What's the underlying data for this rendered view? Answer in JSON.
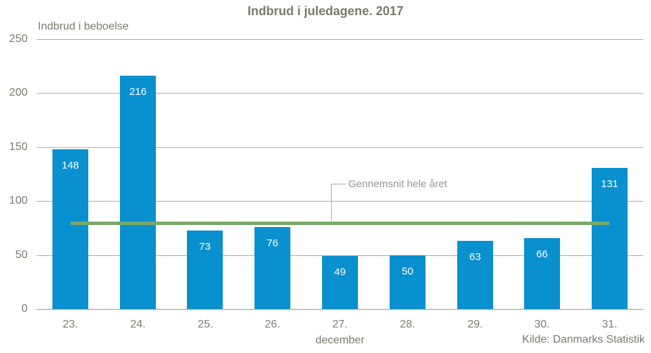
{
  "title": "Indbrud i juledagene. 2017",
  "colors": {
    "bar": "#0990ce",
    "average_line": "#7aa96a",
    "title_text": "#7a7a6b",
    "tick_text": "#7a7a6e",
    "annotation_text": "#96968f",
    "gridline": "#ababa4",
    "axis_line": "#9a9a93",
    "bar_value_text": "#ffffff"
  },
  "chart_data": {
    "type": "bar",
    "title": "Indbrud i juledagene. 2017",
    "ylabel": "Indbrud i beboelse",
    "xlabel": "december",
    "categories": [
      "23.",
      "24.",
      "25.",
      "26.",
      "27.",
      "28.",
      "29.",
      "30.",
      "31."
    ],
    "values": [
      148,
      216,
      73,
      76,
      49,
      50,
      63,
      66,
      131
    ],
    "ylim": [
      0,
      250
    ],
    "yticks": [
      0,
      50,
      100,
      150,
      200,
      250
    ],
    "grid": true,
    "legend_position": "none",
    "average_line_value": 80,
    "annotation": "Gennemsnit hele året",
    "source": "Kilde: Danmarks Statistik"
  }
}
